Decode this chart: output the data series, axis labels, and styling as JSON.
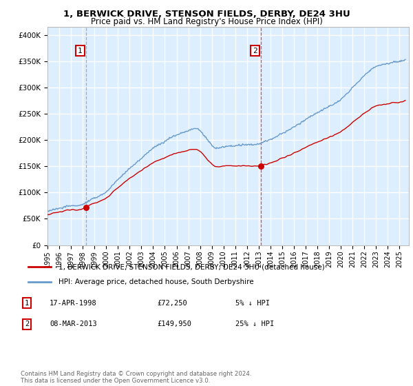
{
  "title1": "1, BERWICK DRIVE, STENSON FIELDS, DERBY, DE24 3HU",
  "title2": "Price paid vs. HM Land Registry's House Price Index (HPI)",
  "ylabel_ticks": [
    "£0",
    "£50K",
    "£100K",
    "£150K",
    "£200K",
    "£250K",
    "£300K",
    "£350K",
    "£400K"
  ],
  "ylabel_values": [
    0,
    50000,
    100000,
    150000,
    200000,
    250000,
    300000,
    350000,
    400000
  ],
  "ylim": [
    0,
    415000
  ],
  "xlim_start": 1995,
  "xlim_end": 2025.8,
  "sale1_date": 1998.29,
  "sale1_price": 72250,
  "sale1_label": "1",
  "sale2_date": 2013.18,
  "sale2_price": 149950,
  "sale2_label": "2",
  "legend_line1": "1, BERWICK DRIVE, STENSON FIELDS, DERBY, DE24 3HU (detached house)",
  "legend_line2": "HPI: Average price, detached house, South Derbyshire",
  "table_row1": [
    "1",
    "17-APR-1998",
    "£72,250",
    "5% ↓ HPI"
  ],
  "table_row2": [
    "2",
    "08-MAR-2013",
    "£149,950",
    "25% ↓ HPI"
  ],
  "footnote": "Contains HM Land Registry data © Crown copyright and database right 2024.\nThis data is licensed under the Open Government Licence v3.0.",
  "line_color_red": "#cc0000",
  "line_color_blue": "#6699cc",
  "bg_color": "#ddeeff",
  "grid_color": "#ffffff",
  "sale_marker_color": "#cc0000",
  "vline1_color": "#aaaaaa",
  "vline2_color": "#ff4444",
  "vline1_style": "--",
  "vline2_style": "--"
}
